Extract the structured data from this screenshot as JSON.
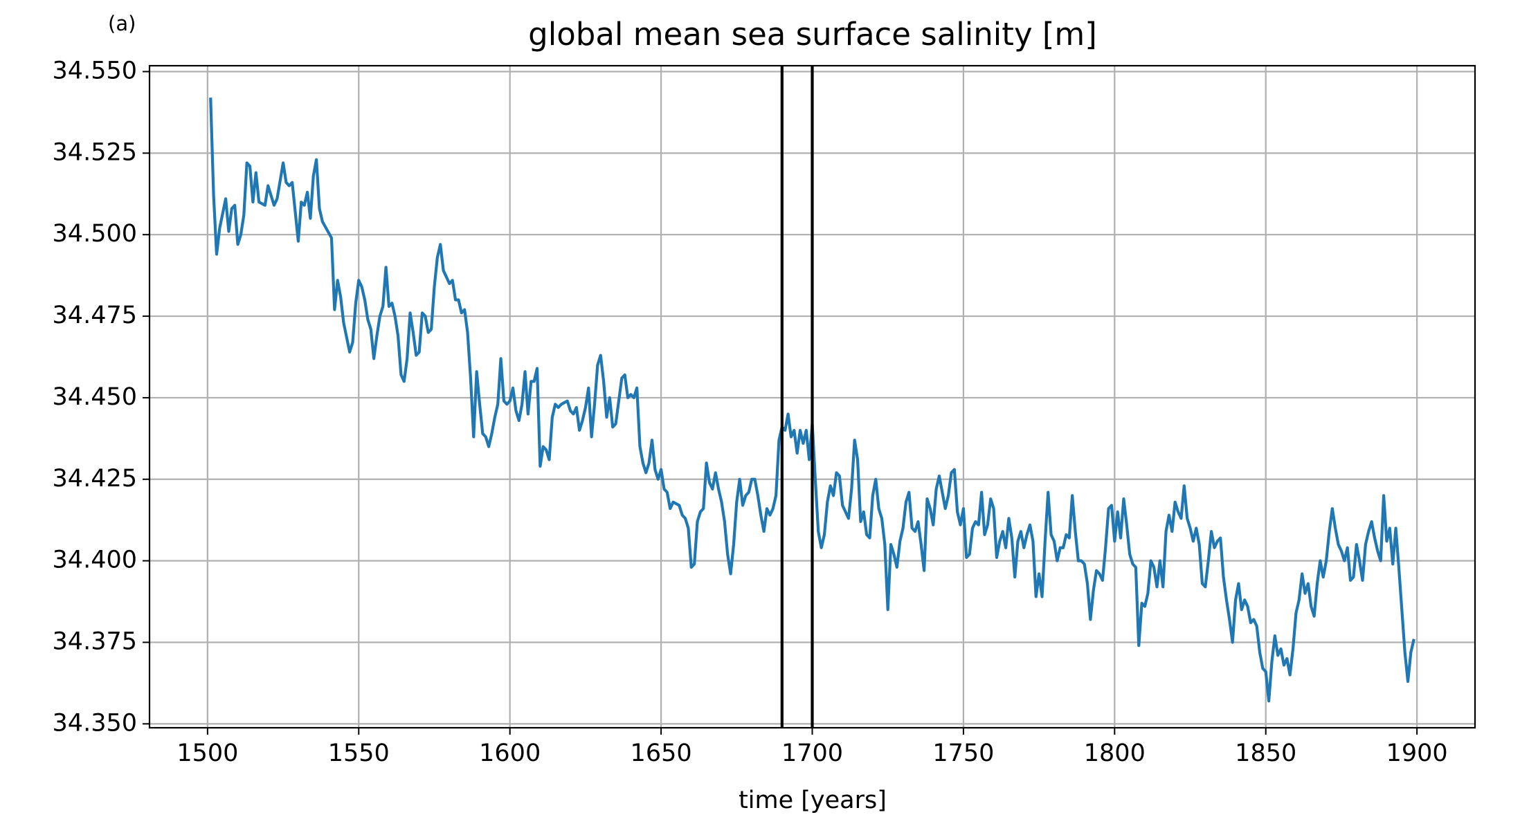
{
  "chart_data": {
    "type": "line",
    "panel_label": "(a)",
    "title": "global mean sea surface salinity [m]",
    "xlabel": "time [years]",
    "xlim": [
      1480.8,
      1919.2
    ],
    "ylim": [
      34.3488,
      34.5518
    ],
    "xticks": [
      1500,
      1550,
      1600,
      1650,
      1700,
      1750,
      1800,
      1850,
      1900
    ],
    "yticks": [
      {
        "value": 34.35,
        "label": "34.350"
      },
      {
        "value": 34.375,
        "label": "34.375"
      },
      {
        "value": 34.4,
        "label": "34.400"
      },
      {
        "value": 34.425,
        "label": "34.425"
      },
      {
        "value": 34.45,
        "label": "34.450"
      },
      {
        "value": 34.475,
        "label": "34.475"
      },
      {
        "value": 34.5,
        "label": "34.500"
      },
      {
        "value": 34.525,
        "label": "34.525"
      },
      {
        "value": 34.55,
        "label": "34.550"
      }
    ],
    "grid": true,
    "vlines": [
      1690,
      1700
    ],
    "vline_color": "#000000",
    "series": [
      {
        "color": "#1f77b4",
        "x": [
          1501,
          1502,
          1503,
          1504,
          1506,
          1507,
          1508,
          1509,
          1510,
          1511,
          1512,
          1513,
          1514,
          1515,
          1516,
          1517,
          1519,
          1520,
          1522,
          1523,
          1525,
          1526,
          1527,
          1528,
          1530,
          1531,
          1532,
          1533,
          1534,
          1535,
          1536,
          1537,
          1538,
          1541,
          1542,
          1543,
          1544,
          1545,
          1547,
          1548,
          1549,
          1550,
          1551,
          1552,
          1553,
          1554,
          1555,
          1556,
          1557,
          1558,
          1559,
          1560,
          1561,
          1562,
          1563,
          1564,
          1565,
          1566,
          1567,
          1568,
          1569,
          1570,
          1571,
          1572,
          1573,
          1574,
          1575,
          1576,
          1577,
          1578,
          1580,
          1581,
          1582,
          1583,
          1584,
          1585,
          1586,
          1587,
          1588,
          1589,
          1590,
          1591,
          1592,
          1593,
          1594,
          1595,
          1596,
          1597,
          1598,
          1599,
          1600,
          1601,
          1602,
          1603,
          1604,
          1605,
          1606,
          1607,
          1608,
          1609,
          1610,
          1611,
          1612,
          1613,
          1614,
          1615,
          1616,
          1617,
          1619,
          1620,
          1621,
          1622,
          1623,
          1624,
          1625,
          1626,
          1627,
          1628,
          1629,
          1630,
          1631,
          1632,
          1633,
          1634,
          1635,
          1636,
          1637,
          1638,
          1639,
          1640,
          1641,
          1642,
          1643,
          1644,
          1645,
          1646,
          1647,
          1648,
          1649,
          1650,
          1651,
          1652,
          1653,
          1654,
          1656,
          1657,
          1658,
          1659,
          1660,
          1661,
          1662,
          1663,
          1664,
          1665,
          1666,
          1667,
          1668,
          1669,
          1670,
          1671,
          1672,
          1673,
          1674,
          1675,
          1676,
          1677,
          1678,
          1679,
          1680,
          1681,
          1682,
          1683,
          1684,
          1685,
          1686,
          1687,
          1688,
          1689,
          1690,
          1691,
          1692,
          1693,
          1694,
          1695,
          1696,
          1697,
          1698,
          1699,
          1700,
          1701,
          1702,
          1703,
          1704,
          1705,
          1706,
          1707,
          1708,
          1709,
          1710,
          1711,
          1712,
          1713,
          1714,
          1715,
          1716,
          1717,
          1718,
          1719,
          1720,
          1721,
          1722,
          1723,
          1724,
          1725,
          1726,
          1727,
          1728,
          1729,
          1730,
          1731,
          1732,
          1733,
          1734,
          1735,
          1736,
          1737,
          1738,
          1739,
          1740,
          1741,
          1742,
          1743,
          1744,
          1745,
          1746,
          1747,
          1748,
          1749,
          1750,
          1751,
          1752,
          1753,
          1754,
          1755,
          1756,
          1757,
          1758,
          1759,
          1760,
          1761,
          1762,
          1763,
          1764,
          1765,
          1766,
          1767,
          1768,
          1769,
          1770,
          1771,
          1772,
          1773,
          1774,
          1775,
          1776,
          1777,
          1778,
          1779,
          1780,
          1781,
          1782,
          1783,
          1784,
          1785,
          1786,
          1787,
          1788,
          1789,
          1790,
          1791,
          1792,
          1793,
          1794,
          1795,
          1796,
          1797,
          1798,
          1799,
          1800,
          1801,
          1802,
          1803,
          1804,
          1805,
          1806,
          1807,
          1808,
          1809,
          1810,
          1811,
          1812,
          1813,
          1814,
          1815,
          1816,
          1817,
          1818,
          1819,
          1820,
          1821,
          1822,
          1823,
          1824,
          1825,
          1826,
          1827,
          1828,
          1829,
          1830,
          1831,
          1832,
          1833,
          1834,
          1835,
          1836,
          1837,
          1838,
          1839,
          1840,
          1841,
          1842,
          1843,
          1844,
          1845,
          1846,
          1847,
          1848,
          1849,
          1850,
          1851,
          1852,
          1853,
          1854,
          1855,
          1856,
          1857,
          1858,
          1859,
          1860,
          1861,
          1862,
          1863,
          1864,
          1865,
          1866,
          1867,
          1868,
          1869,
          1870,
          1871,
          1872,
          1873,
          1874,
          1875,
          1876,
          1877,
          1878,
          1879,
          1880,
          1881,
          1882,
          1883,
          1884,
          1885,
          1886,
          1887,
          1888,
          1889,
          1890,
          1891,
          1892,
          1893,
          1894,
          1895,
          1896,
          1897,
          1898,
          1899
        ],
        "values": [
          34.542,
          34.512,
          34.494,
          34.502,
          34.511,
          34.501,
          34.508,
          34.509,
          34.497,
          34.5,
          34.506,
          34.522,
          34.521,
          34.51,
          34.519,
          34.51,
          34.509,
          34.515,
          34.509,
          34.511,
          34.522,
          34.516,
          34.515,
          34.516,
          34.498,
          34.51,
          34.509,
          34.513,
          34.505,
          34.518,
          34.523,
          34.508,
          34.504,
          34.499,
          34.477,
          34.486,
          34.481,
          34.473,
          34.464,
          34.467,
          34.479,
          34.486,
          34.484,
          34.48,
          34.474,
          34.471,
          34.462,
          34.469,
          34.475,
          34.478,
          34.49,
          34.478,
          34.479,
          34.475,
          34.469,
          34.457,
          34.455,
          34.462,
          34.476,
          34.47,
          34.463,
          34.464,
          34.476,
          34.475,
          34.47,
          34.471,
          34.484,
          34.493,
          34.497,
          34.489,
          34.485,
          34.486,
          34.48,
          34.48,
          34.476,
          34.477,
          34.47,
          34.456,
          34.438,
          34.458,
          34.448,
          34.439,
          34.438,
          34.435,
          34.439,
          34.444,
          34.448,
          34.462,
          34.449,
          34.448,
          34.449,
          34.453,
          34.446,
          34.443,
          34.448,
          34.458,
          34.445,
          34.455,
          34.455,
          34.459,
          34.429,
          34.435,
          34.434,
          34.431,
          34.444,
          34.448,
          34.447,
          34.448,
          34.449,
          34.446,
          34.445,
          34.447,
          34.44,
          34.443,
          34.447,
          34.453,
          34.438,
          34.448,
          34.46,
          34.463,
          34.455,
          34.444,
          34.45,
          34.441,
          34.442,
          34.449,
          34.456,
          34.457,
          34.45,
          34.451,
          34.45,
          34.453,
          34.435,
          34.43,
          34.427,
          34.43,
          34.437,
          34.428,
          34.425,
          34.428,
          34.422,
          34.421,
          34.416,
          34.418,
          34.417,
          34.414,
          34.413,
          34.41,
          34.398,
          34.399,
          34.412,
          34.415,
          34.416,
          34.43,
          34.424,
          34.422,
          34.427,
          34.422,
          34.418,
          34.412,
          34.402,
          34.396,
          34.405,
          34.418,
          34.425,
          34.417,
          34.42,
          34.421,
          34.425,
          34.425,
          34.42,
          34.414,
          34.409,
          34.416,
          34.414,
          34.416,
          34.42,
          34.437,
          34.441,
          34.44,
          34.445,
          34.438,
          34.44,
          34.433,
          34.44,
          34.436,
          34.44,
          34.431,
          34.442,
          34.425,
          34.409,
          34.404,
          34.408,
          34.418,
          34.423,
          34.42,
          34.427,
          34.426,
          34.417,
          34.415,
          34.413,
          34.422,
          34.437,
          34.431,
          34.412,
          34.415,
          34.408,
          34.407,
          34.42,
          34.425,
          34.416,
          34.413,
          34.405,
          34.385,
          34.405,
          34.402,
          34.398,
          34.406,
          34.41,
          34.418,
          34.421,
          34.41,
          34.409,
          34.412,
          34.405,
          34.397,
          34.419,
          34.416,
          34.411,
          34.422,
          34.426,
          34.421,
          34.416,
          34.42,
          34.427,
          34.428,
          34.415,
          34.411,
          34.416,
          34.401,
          34.402,
          34.41,
          34.412,
          34.411,
          34.421,
          34.408,
          34.411,
          34.419,
          34.416,
          34.401,
          34.406,
          34.409,
          34.404,
          34.413,
          34.407,
          34.395,
          34.406,
          34.409,
          34.404,
          34.408,
          34.411,
          34.406,
          34.389,
          34.396,
          34.389,
          34.406,
          34.421,
          34.408,
          34.406,
          34.4,
          34.404,
          34.404,
          34.408,
          34.407,
          34.42,
          34.409,
          34.4,
          34.4,
          34.399,
          34.393,
          34.382,
          34.391,
          34.397,
          34.396,
          34.394,
          34.404,
          34.416,
          34.417,
          34.406,
          34.415,
          34.407,
          34.419,
          34.411,
          34.402,
          34.399,
          34.398,
          34.374,
          34.387,
          34.386,
          34.39,
          34.4,
          34.398,
          34.392,
          34.4,
          34.392,
          34.409,
          34.414,
          34.409,
          34.418,
          34.415,
          34.413,
          34.423,
          34.413,
          34.41,
          34.406,
          34.41,
          34.405,
          34.393,
          34.392,
          34.4,
          34.409,
          34.404,
          34.406,
          34.407,
          34.395,
          34.388,
          34.382,
          34.375,
          34.388,
          34.393,
          34.385,
          34.388,
          34.386,
          34.381,
          34.382,
          34.38,
          34.372,
          34.367,
          34.366,
          34.357,
          34.369,
          34.377,
          34.371,
          34.373,
          34.368,
          34.37,
          34.365,
          34.373,
          34.384,
          34.388,
          34.396,
          34.39,
          34.393,
          34.386,
          34.383,
          34.393,
          34.4,
          34.395,
          34.4,
          34.409,
          34.416,
          34.41,
          34.405,
          34.403,
          34.4,
          34.404,
          34.394,
          34.395,
          34.405,
          34.4,
          34.394,
          34.405,
          34.409,
          34.412,
          34.407,
          34.403,
          34.4,
          34.42,
          34.406,
          34.41,
          34.399,
          34.41,
          34.398,
          34.385,
          34.372,
          34.363,
          34.372,
          34.376
        ]
      }
    ]
  }
}
